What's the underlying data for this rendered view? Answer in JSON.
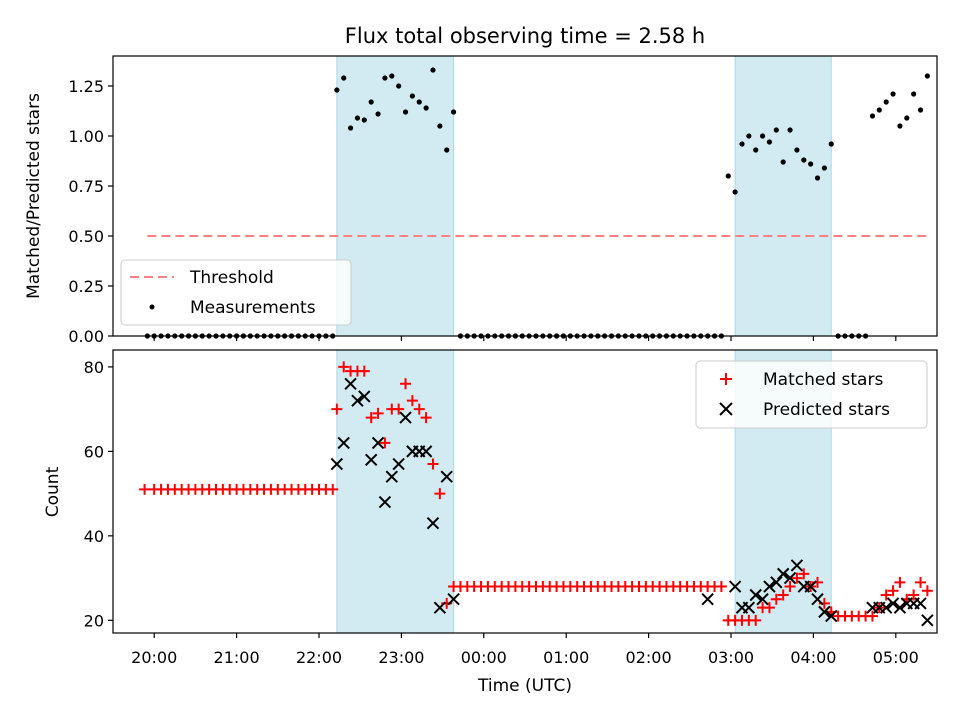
{
  "title": "Flux total observing time = 2.58 h",
  "xlabel": "Time (UTC)",
  "xticks": [
    "20:00",
    "21:00",
    "22:00",
    "23:00",
    "00:00",
    "01:00",
    "02:00",
    "03:00",
    "04:00",
    "05:00"
  ],
  "shaded_regions": [
    {
      "start": "22:13",
      "end": "23:38"
    },
    {
      "start": "03:03",
      "end": "04:13"
    }
  ],
  "colors": {
    "shade": "#add8e6",
    "threshold": "#ff8080",
    "matched": "#ff0000",
    "predicted": "#000000",
    "measurements": "#000000"
  },
  "chart_data": [
    {
      "type": "scatter",
      "ylabel": "Matched/Predicted stars",
      "ylim": [
        0,
        1.4
      ],
      "yticks": [
        "0.00",
        "0.25",
        "0.50",
        "0.75",
        "1.00",
        "1.25"
      ],
      "legend_placement": "lower-left",
      "series": [
        {
          "name": "Threshold",
          "style": "dashed-line",
          "x": [
            "19:55",
            "05:25"
          ],
          "y": [
            0.5,
            0.5
          ]
        },
        {
          "name": "Measurements",
          "style": "dot",
          "x": [
            "19:55",
            "20:00",
            "20:05",
            "20:10",
            "20:15",
            "20:20",
            "20:25",
            "20:30",
            "20:35",
            "20:40",
            "20:45",
            "20:50",
            "20:55",
            "21:00",
            "21:05",
            "21:10",
            "21:15",
            "21:20",
            "21:25",
            "21:30",
            "21:35",
            "21:40",
            "21:45",
            "21:50",
            "21:55",
            "22:00",
            "22:05",
            "22:10",
            "22:13",
            "22:18",
            "22:23",
            "22:28",
            "22:33",
            "22:38",
            "22:43",
            "22:48",
            "22:53",
            "22:58",
            "23:03",
            "23:08",
            "23:13",
            "23:18",
            "23:23",
            "23:28",
            "23:33",
            "23:38",
            "23:43",
            "23:48",
            "23:53",
            "23:58",
            "00:03",
            "00:08",
            "00:13",
            "00:18",
            "00:23",
            "00:28",
            "00:33",
            "00:38",
            "00:43",
            "00:48",
            "00:53",
            "00:58",
            "01:03",
            "01:08",
            "01:13",
            "01:18",
            "01:23",
            "01:28",
            "01:33",
            "01:38",
            "01:43",
            "01:48",
            "01:53",
            "01:58",
            "02:03",
            "02:08",
            "02:13",
            "02:18",
            "02:23",
            "02:28",
            "02:33",
            "02:38",
            "02:43",
            "02:48",
            "02:53",
            "02:58",
            "03:03",
            "03:08",
            "03:13",
            "03:18",
            "03:23",
            "03:28",
            "03:33",
            "03:38",
            "03:43",
            "03:48",
            "03:53",
            "03:58",
            "04:03",
            "04:08",
            "04:13",
            "04:18",
            "04:23",
            "04:28",
            "04:33",
            "04:38",
            "04:43",
            "04:48",
            "04:53",
            "04:58",
            "05:03",
            "05:08",
            "05:13",
            "05:18",
            "05:23"
          ],
          "y": [
            0,
            0,
            0,
            0,
            0,
            0,
            0,
            0,
            0,
            0,
            0,
            0,
            0,
            0,
            0,
            0,
            0,
            0,
            0,
            0,
            0,
            0,
            0,
            0,
            0,
            0,
            0,
            0,
            1.23,
            1.29,
            1.04,
            1.09,
            1.08,
            1.17,
            1.11,
            1.29,
            1.3,
            1.25,
            1.12,
            1.2,
            1.17,
            1.14,
            1.33,
            1.05,
            0.93,
            1.12,
            0,
            0,
            0,
            0,
            0,
            0,
            0,
            0,
            0,
            0,
            0,
            0,
            0,
            0,
            0,
            0,
            0,
            0,
            0,
            0,
            0,
            0,
            0,
            0,
            0,
            0,
            0,
            0,
            0,
            0,
            0,
            0,
            0,
            0,
            0,
            0,
            0,
            0,
            0,
            0.8,
            0.72,
            0.96,
            1.0,
            0.93,
            1.0,
            0.97,
            1.03,
            0.87,
            1.03,
            0.93,
            0.88,
            0.86,
            0.79,
            0.84,
            0.96,
            0,
            0,
            0,
            0,
            0,
            1.1,
            1.13,
            1.17,
            1.21,
            1.05,
            1.09,
            1.21,
            1.13,
            1.3
          ]
        }
      ]
    },
    {
      "type": "scatter",
      "ylabel": "Count",
      "ylim": [
        17,
        84
      ],
      "yticks": [
        "20",
        "40",
        "60",
        "80"
      ],
      "legend_placement": "top-right",
      "series": [
        {
          "name": "Matched stars",
          "marker": "plus",
          "x": [
            "19:53",
            "20:00",
            "20:05",
            "20:10",
            "20:15",
            "20:20",
            "20:25",
            "20:30",
            "20:35",
            "20:40",
            "20:45",
            "20:50",
            "20:55",
            "21:00",
            "21:05",
            "21:10",
            "21:15",
            "21:20",
            "21:25",
            "21:30",
            "21:35",
            "21:40",
            "21:45",
            "21:50",
            "21:55",
            "22:00",
            "22:05",
            "22:10",
            "22:13",
            "22:18",
            "22:23",
            "22:28",
            "22:33",
            "22:38",
            "22:43",
            "22:48",
            "22:53",
            "22:58",
            "23:03",
            "23:08",
            "23:13",
            "23:18",
            "23:23",
            "23:28",
            "23:33",
            "23:38",
            "23:43",
            "23:48",
            "23:53",
            "23:58",
            "00:03",
            "00:08",
            "00:13",
            "00:18",
            "00:23",
            "00:28",
            "00:33",
            "00:38",
            "00:43",
            "00:48",
            "00:53",
            "00:58",
            "01:03",
            "01:08",
            "01:13",
            "01:18",
            "01:23",
            "01:28",
            "01:33",
            "01:38",
            "01:43",
            "01:48",
            "01:53",
            "01:58",
            "02:03",
            "02:08",
            "02:13",
            "02:18",
            "02:23",
            "02:28",
            "02:33",
            "02:38",
            "02:43",
            "02:48",
            "02:53",
            "02:58",
            "03:03",
            "03:08",
            "03:13",
            "03:18",
            "03:23",
            "03:28",
            "03:33",
            "03:38",
            "03:43",
            "03:48",
            "03:53",
            "03:58",
            "04:03",
            "04:08",
            "04:13",
            "04:18",
            "04:23",
            "04:28",
            "04:33",
            "04:38",
            "04:43",
            "04:48",
            "04:53",
            "04:58",
            "05:03",
            "05:08",
            "05:13",
            "05:18",
            "05:23"
          ],
          "y": [
            51,
            51,
            51,
            51,
            51,
            51,
            51,
            51,
            51,
            51,
            51,
            51,
            51,
            51,
            51,
            51,
            51,
            51,
            51,
            51,
            51,
            51,
            51,
            51,
            51,
            51,
            51,
            51,
            70,
            80,
            79,
            79,
            79,
            68,
            69,
            62,
            70,
            70,
            76,
            72,
            70,
            68,
            57,
            50,
            24,
            28,
            28,
            28,
            28,
            28,
            28,
            28,
            28,
            28,
            28,
            28,
            28,
            28,
            28,
            28,
            28,
            28,
            28,
            28,
            28,
            28,
            28,
            28,
            28,
            28,
            28,
            28,
            28,
            28,
            28,
            28,
            28,
            28,
            28,
            28,
            28,
            28,
            28,
            28,
            28,
            20,
            20,
            20,
            20,
            20,
            23,
            23,
            25,
            26,
            28,
            30,
            31,
            28,
            29,
            24,
            22,
            21,
            21,
            21,
            21,
            21,
            21,
            23,
            26,
            27,
            29,
            25,
            26,
            29,
            27
          ]
        },
        {
          "name": "Predicted stars",
          "marker": "x",
          "x": [
            "22:13",
            "22:18",
            "22:23",
            "22:28",
            "22:33",
            "22:38",
            "22:43",
            "22:48",
            "22:53",
            "22:58",
            "23:03",
            "23:08",
            "23:13",
            "23:18",
            "23:23",
            "23:28",
            "23:33",
            "23:38",
            "02:43",
            "03:03",
            "03:08",
            "03:13",
            "03:18",
            "03:23",
            "03:28",
            "03:33",
            "03:38",
            "03:43",
            "03:48",
            "03:53",
            "03:58",
            "04:03",
            "04:08",
            "04:13",
            "04:43",
            "04:48",
            "04:53",
            "04:58",
            "05:03",
            "05:08",
            "05:13",
            "05:18",
            "05:23"
          ],
          "y": [
            57,
            62,
            76,
            72,
            73,
            58,
            62,
            48,
            54,
            57,
            68,
            60,
            60,
            60,
            43,
            23,
            54,
            25,
            25,
            28,
            23,
            23,
            26,
            25,
            28,
            29,
            31,
            30,
            33,
            28,
            28,
            25,
            22,
            21,
            23,
            23,
            23,
            24,
            23,
            24,
            24,
            24,
            20
          ]
        }
      ]
    }
  ]
}
